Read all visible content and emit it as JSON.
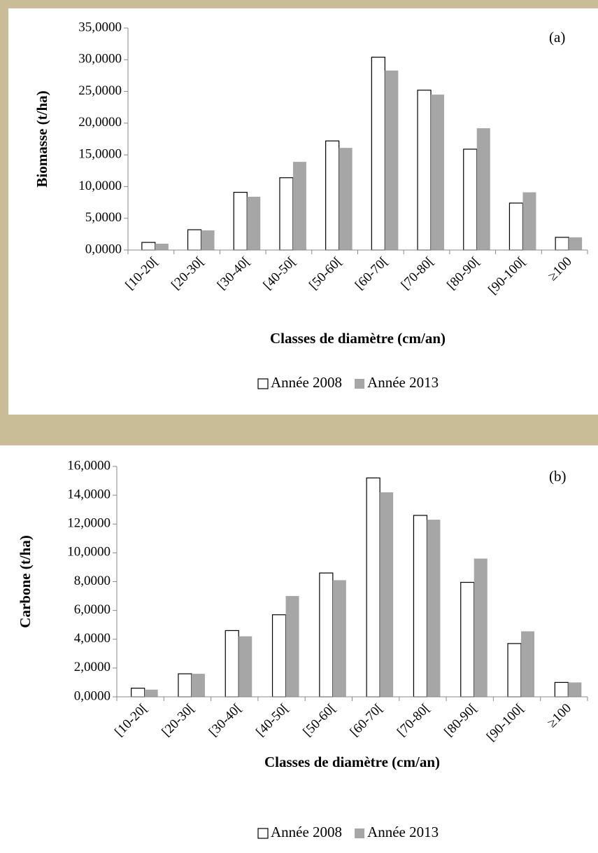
{
  "chart_data": [
    {
      "type": "bar",
      "annotation": "(a)",
      "y_label": "Biomasse (t/ha)",
      "x_label": "Classes de diamètre (cm/an)",
      "categories": [
        "[10-20[",
        "[20-30[",
        "[30-40[",
        "[40-50[",
        "[50-60[",
        "[60-70[",
        "[70-80[",
        "[80-90[",
        "[90-100[",
        "≥100"
      ],
      "series": [
        {
          "name": "Année 2008",
          "color": "#ffffff",
          "values": [
            1.2,
            3.2,
            9.1,
            11.4,
            17.2,
            30.4,
            25.2,
            15.9,
            7.4,
            2.0
          ]
        },
        {
          "name": "Année 2013",
          "color": "#a6a6a6",
          "values": [
            1.0,
            3.1,
            8.4,
            13.9,
            16.1,
            28.3,
            24.5,
            19.2,
            9.1,
            2.0
          ]
        }
      ],
      "ylim": [
        0,
        35
      ],
      "yticks": [
        {
          "value": 0,
          "label": "0,0000"
        },
        {
          "value": 5,
          "label": "5,0000"
        },
        {
          "value": 10,
          "label": "10,0000"
        },
        {
          "value": 15,
          "label": "15,0000"
        },
        {
          "value": 20,
          "label": "20,0000"
        },
        {
          "value": 25,
          "label": "25,0000"
        },
        {
          "value": 30,
          "label": "30,0000"
        },
        {
          "value": 35,
          "label": "35,0000"
        }
      ],
      "legend": "bottom"
    },
    {
      "type": "bar",
      "annotation": "(b)",
      "y_label": "Carbone (t/ha)",
      "x_label": "Classes de diamètre (cm/an)",
      "categories": [
        "[10-20[",
        "[20-30[",
        "[30-40[",
        "[40-50[",
        "[50-60[",
        "[60-70[",
        "[70-80[",
        "[80-90[",
        "[90-100[",
        "≥100"
      ],
      "series": [
        {
          "name": "Année 2008",
          "color": "#ffffff",
          "values": [
            0.6,
            1.6,
            4.6,
            5.7,
            8.6,
            15.2,
            12.6,
            7.95,
            3.7,
            1.0
          ]
        },
        {
          "name": "Année 2013",
          "color": "#a6a6a6",
          "values": [
            0.5,
            1.6,
            4.2,
            7.0,
            8.1,
            14.2,
            12.3,
            9.6,
            4.55,
            1.0
          ]
        }
      ],
      "ylim": [
        0,
        16
      ],
      "yticks": [
        {
          "value": 0,
          "label": "0,0000"
        },
        {
          "value": 2,
          "label": "2,0000"
        },
        {
          "value": 4,
          "label": "4,0000"
        },
        {
          "value": 6,
          "label": "6,0000"
        },
        {
          "value": 8,
          "label": "8,0000"
        },
        {
          "value": 10,
          "label": "10,0000"
        },
        {
          "value": 12,
          "label": "12,0000"
        },
        {
          "value": 14,
          "label": "14,0000"
        },
        {
          "value": 16,
          "label": "16,0000"
        }
      ],
      "legend": "bottom"
    }
  ]
}
